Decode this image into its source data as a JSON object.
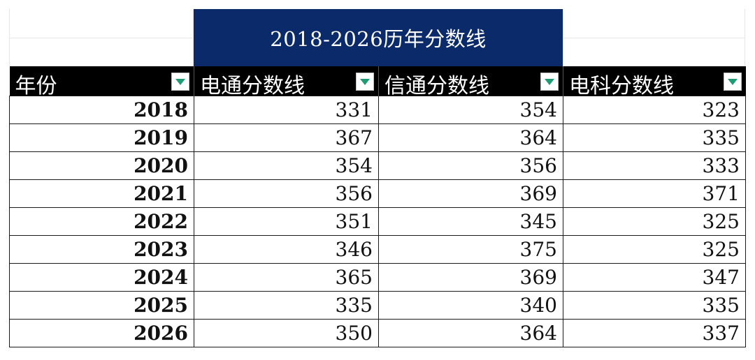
{
  "title": "2018-2026历年分数线",
  "headers": [
    {
      "label": "年份",
      "filter_icon": "dropdown-arrow-icon"
    },
    {
      "label": "电通分数线",
      "filter_icon": "dropdown-arrow-icon"
    },
    {
      "label": "信通分数线",
      "filter_icon": "dropdown-arrow-icon"
    },
    {
      "label": "电科分数线",
      "filter_icon": "dropdown-arrow-icon"
    }
  ],
  "rows": [
    [
      "2018",
      "331",
      "354",
      "323"
    ],
    [
      "2019",
      "367",
      "364",
      "335"
    ],
    [
      "2020",
      "354",
      "356",
      "333"
    ],
    [
      "2021",
      "356",
      "369",
      "371"
    ],
    [
      "2022",
      "351",
      "345",
      "325"
    ],
    [
      "2023",
      "346",
      "375",
      "325"
    ],
    [
      "2024",
      "365",
      "369",
      "347"
    ],
    [
      "2025",
      "335",
      "340",
      "335"
    ],
    [
      "2026",
      "350",
      "364",
      "337"
    ]
  ],
  "colors": {
    "title_background": "#0b2a6a",
    "header_background": "#000000",
    "filter_arrow": "#1f9c74"
  }
}
